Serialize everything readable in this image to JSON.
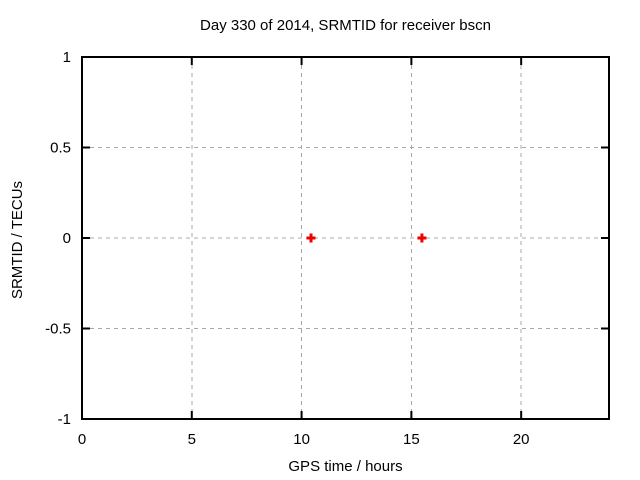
{
  "chart_data": {
    "type": "scatter",
    "title": "Day 330 of 2014, SRMTID for receiver bscn",
    "xlabel": "GPS time / hours",
    "ylabel": "SRMTID / TECUs",
    "xlim": [
      0,
      24
    ],
    "ylim": [
      -1,
      1
    ],
    "xticks": {
      "values": [
        0,
        5,
        10,
        15,
        20
      ],
      "labels": [
        "0",
        "5",
        "10",
        "15",
        "20"
      ]
    },
    "yticks": {
      "values": [
        -1,
        -0.5,
        0,
        0.5,
        1
      ],
      "labels": [
        "-1",
        "-0.5",
        "0",
        "0.5",
        "1"
      ]
    },
    "grid": true,
    "legend": "none",
    "series": [
      {
        "marker": "plus",
        "color": "#ee0000",
        "points": [
          {
            "x": 10.43,
            "y": 0.0
          },
          {
            "x": 15.48,
            "y": 0.0
          }
        ]
      }
    ]
  },
  "colors": {
    "background": "#ffffff",
    "border": "#000000",
    "grid": "#a8a8a8",
    "text": "#000000"
  }
}
